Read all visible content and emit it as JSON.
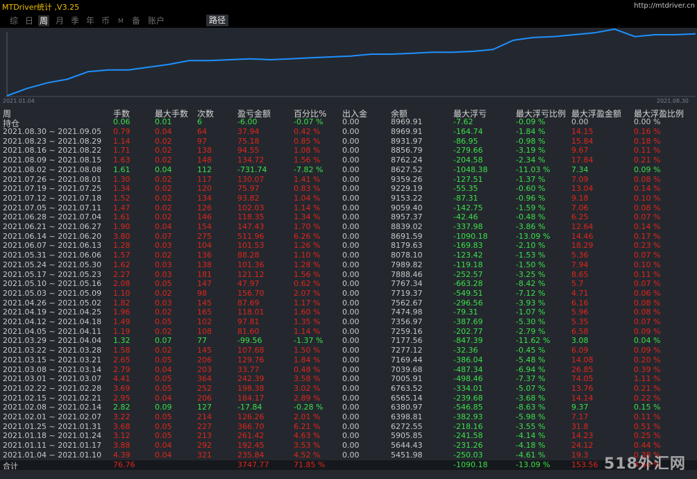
{
  "app": {
    "title": "MTDriver统计 ,V3.25",
    "site": "http://mtdriver.cn"
  },
  "tabs": [
    {
      "label": "综",
      "active": false
    },
    {
      "label": "日",
      "active": false
    },
    {
      "label": "周",
      "active": true
    },
    {
      "label": "月",
      "active": false
    },
    {
      "label": "季",
      "active": false
    },
    {
      "label": "年",
      "active": false
    },
    {
      "label": "币",
      "active": false
    },
    {
      "label": "M",
      "active": false
    },
    {
      "label": "备",
      "active": false
    },
    {
      "label": "账户",
      "active": false
    }
  ],
  "path_button": "路径",
  "chart": {
    "start_label": "2021.01.04",
    "end_label": "2021.08.30",
    "line_color": "#1e90ff",
    "points": [
      0,
      4,
      7,
      9,
      13,
      14,
      14,
      15.5,
      17,
      19,
      19,
      19.5,
      20,
      19.5,
      20,
      20.5,
      21,
      21.5,
      22.5,
      22.5,
      23,
      23.5,
      23.5,
      24,
      25,
      30,
      31.5,
      32,
      33,
      34,
      36,
      32,
      33,
      33,
      33.5
    ]
  },
  "columns": [
    "周",
    "手数",
    "最大手数",
    "次数",
    "盈亏金额",
    "百分比%",
    "出入金",
    "余额",
    "最大浮亏",
    "最大浮亏比例",
    "最大浮盈金额",
    "最大浮盈比例"
  ],
  "holding": {
    "label": "持仓",
    "lots": "0.06",
    "max_lots": "0.01",
    "count": "6",
    "pnl": "-6.00",
    "pct": "-0.07 %",
    "flow": "0.00",
    "balance": "8969.91",
    "max_dd": "-7.62",
    "max_dd_pct": "-0.09 %",
    "max_fp": "0.00",
    "max_fp_pct": "0.00 %"
  },
  "rows": [
    {
      "period": "2021.08.30 ~ 2021.09.05",
      "lots": "0.79",
      "max_lots": "0.04",
      "count": "64",
      "pnl": "37.94",
      "pct": "0.42 %",
      "flow": "0.00",
      "balance": "8969.91",
      "max_dd": "-164.74",
      "max_dd_pct": "-1.84 %",
      "max_fp": "14.15",
      "max_fp_pct": "0.16 %",
      "neg": false
    },
    {
      "period": "2021.08.23 ~ 2021.08.29",
      "lots": "1.14",
      "max_lots": "0.02",
      "count": "97",
      "pnl": "75.18",
      "pct": "0.85 %",
      "flow": "0.00",
      "balance": "8931.97",
      "max_dd": "-86.95",
      "max_dd_pct": "-0.98 %",
      "max_fp": "15.84",
      "max_fp_pct": "0.18 %",
      "neg": false
    },
    {
      "period": "2021.08.16 ~ 2021.08.22",
      "lots": "1.71",
      "max_lots": "0.02",
      "count": "138",
      "pnl": "94.55",
      "pct": "1.08 %",
      "flow": "0.00",
      "balance": "8856.79",
      "max_dd": "-279.66",
      "max_dd_pct": "-3.19 %",
      "max_fp": "9.67",
      "max_fp_pct": "0.11 %",
      "neg": false
    },
    {
      "period": "2021.08.09 ~ 2021.08.15",
      "lots": "1.63",
      "max_lots": "0.02",
      "count": "148",
      "pnl": "134.72",
      "pct": "1.56 %",
      "flow": "0.00",
      "balance": "8762.24",
      "max_dd": "-204.58",
      "max_dd_pct": "-2.34 %",
      "max_fp": "17.84",
      "max_fp_pct": "0.21 %",
      "neg": false
    },
    {
      "period": "2021.08.02 ~ 2021.08.08",
      "lots": "1.61",
      "max_lots": "0.04",
      "count": "112",
      "pnl": "-731.74",
      "pct": "-7.82 %",
      "flow": "0.00",
      "balance": "8627.52",
      "max_dd": "-1048.38",
      "max_dd_pct": "-11.03 %",
      "max_fp": "7.34",
      "max_fp_pct": "0.09 %",
      "neg": true
    },
    {
      "period": "2021.07.26 ~ 2021.08.01",
      "lots": "1.30",
      "max_lots": "0.02",
      "count": "117",
      "pnl": "130.07",
      "pct": "1.41 %",
      "flow": "0.00",
      "balance": "9359.26",
      "max_dd": "-127.51",
      "max_dd_pct": "-1.37 %",
      "max_fp": "7.09",
      "max_fp_pct": "0.08 %",
      "neg": false
    },
    {
      "period": "2021.07.19 ~ 2021.07.25",
      "lots": "1.34",
      "max_lots": "0.02",
      "count": "120",
      "pnl": "75.97",
      "pct": "0.83 %",
      "flow": "0.00",
      "balance": "9229.19",
      "max_dd": "-55.35",
      "max_dd_pct": "-0.60 %",
      "max_fp": "13.04",
      "max_fp_pct": "0.14 %",
      "neg": false
    },
    {
      "period": "2021.07.12 ~ 2021.07.18",
      "lots": "1.52",
      "max_lots": "0.02",
      "count": "134",
      "pnl": "93.82",
      "pct": "1.04 %",
      "flow": "0.00",
      "balance": "9153.22",
      "max_dd": "-87.31",
      "max_dd_pct": "-0.96 %",
      "max_fp": "9.18",
      "max_fp_pct": "0.10 %",
      "neg": false
    },
    {
      "period": "2021.07.05 ~ 2021.07.11",
      "lots": "1.47",
      "max_lots": "0.02",
      "count": "126",
      "pnl": "102.03",
      "pct": "1.14 %",
      "flow": "0.00",
      "balance": "9059.40",
      "max_dd": "-142.75",
      "max_dd_pct": "-1.59 %",
      "max_fp": "7.06",
      "max_fp_pct": "0.08 %",
      "neg": false
    },
    {
      "period": "2021.06.28 ~ 2021.07.04",
      "lots": "1.61",
      "max_lots": "0.02",
      "count": "146",
      "pnl": "118.35",
      "pct": "1.34 %",
      "flow": "0.00",
      "balance": "8957.37",
      "max_dd": "-42.46",
      "max_dd_pct": "-0.48 %",
      "max_fp": "6.25",
      "max_fp_pct": "0.07 %",
      "neg": false
    },
    {
      "period": "2021.06.21 ~ 2021.06.27",
      "lots": "1.90",
      "max_lots": "0.04",
      "count": "154",
      "pnl": "147.43",
      "pct": "1.70 %",
      "flow": "0.00",
      "balance": "8839.02",
      "max_dd": "-337.98",
      "max_dd_pct": "-3.86 %",
      "max_fp": "12.64",
      "max_fp_pct": "0.14 %",
      "neg": false
    },
    {
      "period": "2021.06.14 ~ 2021.06.20",
      "lots": "3.80",
      "max_lots": "0.07",
      "count": "275",
      "pnl": "511.96",
      "pct": "6.26 %",
      "flow": "0.00",
      "balance": "8691.59",
      "max_dd": "-1090.18",
      "max_dd_pct": "-13.09 %",
      "max_fp": "14.46",
      "max_fp_pct": "0.17 %",
      "neg": false
    },
    {
      "period": "2021.06.07 ~ 2021.06.13",
      "lots": "1.28",
      "max_lots": "0.03",
      "count": "104",
      "pnl": "101.53",
      "pct": "1.26 %",
      "flow": "0.00",
      "balance": "8179.63",
      "max_dd": "-169.83",
      "max_dd_pct": "-2.10 %",
      "max_fp": "18.29",
      "max_fp_pct": "0.23 %",
      "neg": false
    },
    {
      "period": "2021.05.31 ~ 2021.06.06",
      "lots": "1.57",
      "max_lots": "0.02",
      "count": "136",
      "pnl": "88.28",
      "pct": "1.10 %",
      "flow": "0.00",
      "balance": "8078.10",
      "max_dd": "-123.42",
      "max_dd_pct": "-1.53 %",
      "max_fp": "5.36",
      "max_fp_pct": "0.07 %",
      "neg": false
    },
    {
      "period": "2021.05.24 ~ 2021.05.30",
      "lots": "1.62",
      "max_lots": "0.03",
      "count": "138",
      "pnl": "101.36",
      "pct": "1.28 %",
      "flow": "0.00",
      "balance": "7989.82",
      "max_dd": "-119.18",
      "max_dd_pct": "-1.50 %",
      "max_fp": "7.94",
      "max_fp_pct": "0.10 %",
      "neg": false
    },
    {
      "period": "2021.05.17 ~ 2021.05.23",
      "lots": "2.27",
      "max_lots": "0.03",
      "count": "181",
      "pnl": "121.12",
      "pct": "1.56 %",
      "flow": "0.00",
      "balance": "7888.46",
      "max_dd": "-252.57",
      "max_dd_pct": "-3.25 %",
      "max_fp": "8.65",
      "max_fp_pct": "0.11 %",
      "neg": false
    },
    {
      "period": "2021.05.10 ~ 2021.05.16",
      "lots": "2.08",
      "max_lots": "0.05",
      "count": "147",
      "pnl": "47.97",
      "pct": "0.62 %",
      "flow": "0.00",
      "balance": "7767.34",
      "max_dd": "-663.28",
      "max_dd_pct": "-8.42 %",
      "max_fp": "5.7",
      "max_fp_pct": "0.07 %",
      "neg": false
    },
    {
      "period": "2021.05.03 ~ 2021.05.09",
      "lots": "1.10",
      "max_lots": "0.02",
      "count": "98",
      "pnl": "156.70",
      "pct": "2.07 %",
      "flow": "0.00",
      "balance": "7719.37",
      "max_dd": "-549.51",
      "max_dd_pct": "-7.12 %",
      "max_fp": "4.71",
      "max_fp_pct": "0.06 %",
      "neg": false
    },
    {
      "period": "2021.04.26 ~ 2021.05.02",
      "lots": "1.82",
      "max_lots": "0.03",
      "count": "145",
      "pnl": "87.69",
      "pct": "1.17 %",
      "flow": "0.00",
      "balance": "7562.67",
      "max_dd": "-296.56",
      "max_dd_pct": "-3.93 %",
      "max_fp": "6.16",
      "max_fp_pct": "0.08 %",
      "neg": false
    },
    {
      "period": "2021.04.19 ~ 2021.04.25",
      "lots": "1.96",
      "max_lots": "0.02",
      "count": "165",
      "pnl": "118.01",
      "pct": "1.60 %",
      "flow": "0.00",
      "balance": "7474.98",
      "max_dd": "-79.31",
      "max_dd_pct": "-1.07 %",
      "max_fp": "5.96",
      "max_fp_pct": "0.08 %",
      "neg": false
    },
    {
      "period": "2021.04.12 ~ 2021.04.18",
      "lots": "1.49",
      "max_lots": "0.05",
      "count": "102",
      "pnl": "97.81",
      "pct": "1.35 %",
      "flow": "0.00",
      "balance": "7356.97",
      "max_dd": "-387.69",
      "max_dd_pct": "-5.30 %",
      "max_fp": "5.35",
      "max_fp_pct": "0.07 %",
      "neg": false
    },
    {
      "period": "2021.04.05 ~ 2021.04.11",
      "lots": "1.19",
      "max_lots": "0.02",
      "count": "108",
      "pnl": "81.60",
      "pct": "1.14 %",
      "flow": "0.00",
      "balance": "7259.16",
      "max_dd": "-202.77",
      "max_dd_pct": "-2.79 %",
      "max_fp": "6.58",
      "max_fp_pct": "0.09 %",
      "neg": false
    },
    {
      "period": "2021.03.29 ~ 2021.04.04",
      "lots": "1.32",
      "max_lots": "0.07",
      "count": "77",
      "pnl": "-99.56",
      "pct": "-1.37 %",
      "flow": "0.00",
      "balance": "7177.56",
      "max_dd": "-847.39",
      "max_dd_pct": "-11.62 %",
      "max_fp": "3.08",
      "max_fp_pct": "0.04 %",
      "neg": true
    },
    {
      "period": "2021.03.22 ~ 2021.03.28",
      "lots": "1.58",
      "max_lots": "0.02",
      "count": "145",
      "pnl": "107.68",
      "pct": "1.50 %",
      "flow": "0.00",
      "balance": "7277.12",
      "max_dd": "-32.36",
      "max_dd_pct": "-0.45 %",
      "max_fp": "6.09",
      "max_fp_pct": "0.09 %",
      "neg": false
    },
    {
      "period": "2021.03.15 ~ 2021.03.21",
      "lots": "2.65",
      "max_lots": "0.05",
      "count": "206",
      "pnl": "129.76",
      "pct": "1.84 %",
      "flow": "0.00",
      "balance": "7169.44",
      "max_dd": "-386.04",
      "max_dd_pct": "-5.48 %",
      "max_fp": "14.08",
      "max_fp_pct": "0.20 %",
      "neg": false
    },
    {
      "period": "2021.03.08 ~ 2021.03.14",
      "lots": "2.79",
      "max_lots": "0.04",
      "count": "203",
      "pnl": "33.77",
      "pct": "0.48 %",
      "flow": "0.00",
      "balance": "7039.68",
      "max_dd": "-487.34",
      "max_dd_pct": "-6.94 %",
      "max_fp": "26.85",
      "max_fp_pct": "0.39 %",
      "neg": false
    },
    {
      "period": "2021.03.01 ~ 2021.03.07",
      "lots": "4.41",
      "max_lots": "0.05",
      "count": "364",
      "pnl": "242.39",
      "pct": "3.58 %",
      "flow": "0.00",
      "balance": "7005.91",
      "max_dd": "-498.46",
      "max_dd_pct": "-7.37 %",
      "max_fp": "74.05",
      "max_fp_pct": "1.11 %",
      "neg": false
    },
    {
      "period": "2021.02.22 ~ 2021.02.28",
      "lots": "3.69",
      "max_lots": "0.05",
      "count": "252",
      "pnl": "198.38",
      "pct": "3.02 %",
      "flow": "0.00",
      "balance": "6763.52",
      "max_dd": "-334.01",
      "max_dd_pct": "-5.07 %",
      "max_fp": "13.76",
      "max_fp_pct": "0.21 %",
      "neg": false
    },
    {
      "period": "2021.02.15 ~ 2021.02.21",
      "lots": "2.95",
      "max_lots": "0.04",
      "count": "206",
      "pnl": "184.17",
      "pct": "2.89 %",
      "flow": "0.00",
      "balance": "6565.14",
      "max_dd": "-239.68",
      "max_dd_pct": "-3.68 %",
      "max_fp": "14.14",
      "max_fp_pct": "0.22 %",
      "neg": false
    },
    {
      "period": "2021.02.08 ~ 2021.02.14",
      "lots": "2.82",
      "max_lots": "0.09",
      "count": "127",
      "pnl": "-17.84",
      "pct": "-0.28 %",
      "flow": "0.00",
      "balance": "6380.97",
      "max_dd": "-546.85",
      "max_dd_pct": "-8.63 %",
      "max_fp": "9.37",
      "max_fp_pct": "0.15 %",
      "neg": true
    },
    {
      "period": "2021.02.01 ~ 2021.02.07",
      "lots": "3.22",
      "max_lots": "0.05",
      "count": "214",
      "pnl": "126.26",
      "pct": "2.01 %",
      "flow": "0.00",
      "balance": "6398.81",
      "max_dd": "-382.93",
      "max_dd_pct": "-5.98 %",
      "max_fp": "7.17",
      "max_fp_pct": "0.11 %",
      "neg": false
    },
    {
      "period": "2021.01.25 ~ 2021.01.31",
      "lots": "3.68",
      "max_lots": "0.05",
      "count": "227",
      "pnl": "366.70",
      "pct": "6.21 %",
      "flow": "0.00",
      "balance": "6272.55",
      "max_dd": "-218.16",
      "max_dd_pct": "-3.55 %",
      "max_fp": "31.8",
      "max_fp_pct": "0.51 %",
      "neg": false
    },
    {
      "period": "2021.01.18 ~ 2021.01.24",
      "lots": "3.12",
      "max_lots": "0.05",
      "count": "213",
      "pnl": "261.42",
      "pct": "4.63 %",
      "flow": "0.00",
      "balance": "5905.85",
      "max_dd": "-241.58",
      "max_dd_pct": "-4.14 %",
      "max_fp": "14.23",
      "max_fp_pct": "0.25 %",
      "neg": false
    },
    {
      "period": "2021.01.11 ~ 2021.01.17",
      "lots": "3.88",
      "max_lots": "0.04",
      "count": "292",
      "pnl": "192.45",
      "pct": "3.53 %",
      "flow": "0.00",
      "balance": "5644.43",
      "max_dd": "-231.26",
      "max_dd_pct": "-4.18 %",
      "max_fp": "24.12",
      "max_fp_pct": "0.44 %",
      "neg": false
    },
    {
      "period": "2021.01.04 ~ 2021.01.10",
      "lots": "4.39",
      "max_lots": "0.04",
      "count": "321",
      "pnl": "235.84",
      "pct": "4.52 %",
      "flow": "0.00",
      "balance": "5451.98",
      "max_dd": "-250.03",
      "max_dd_pct": "-4.61 %",
      "max_fp": "19.3",
      "max_fp_pct": "0.38 %",
      "neg": false
    }
  ],
  "total": {
    "label": "合计",
    "lots": "76.76",
    "pnl": "3747.77",
    "pct": "71.85 %",
    "max_dd": "-1090.18",
    "max_dd_pct": "-13.09 %",
    "max_fp": "153.56",
    "max_fp_pct": "4.66 %"
  },
  "watermark": "518外汇网"
}
